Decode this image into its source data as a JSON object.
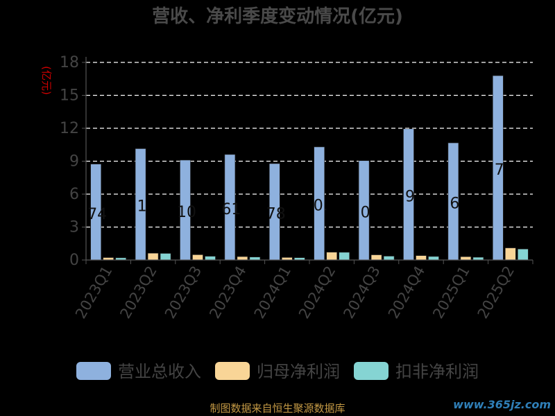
{
  "chart_data": {
    "type": "bar",
    "title": "营收、净利季度变动情况(亿元)",
    "ylabel": "(亿元)",
    "xlabel": "",
    "categories": [
      "2023Q1",
      "2023Q2",
      "2023Q3",
      "2023Q4",
      "2024Q1",
      "2024Q2",
      "2024Q3",
      "2024Q4",
      "2025Q1",
      "2025Q2"
    ],
    "yticks": [
      "0",
      "3",
      "6",
      "9",
      "12",
      "15",
      "18"
    ],
    "ylim": [
      0,
      18
    ],
    "grid": true,
    "legend_position": "bottom",
    "series": [
      {
        "name": "营业总收入",
        "color": "#8eb1de",
        "values": [
          8.74,
          10.14,
          9.1,
          9.61,
          8.78,
          10.3,
          9.05,
          11.95,
          10.67,
          16.79
        ]
      },
      {
        "name": "归母净利润",
        "color": "#f9d597",
        "values": [
          0.22,
          0.62,
          0.48,
          0.31,
          0.23,
          0.71,
          0.47,
          0.4,
          0.3,
          1.1
        ]
      },
      {
        "name": "扣非净利润",
        "color": "#85d4d3",
        "values": [
          0.2,
          0.6,
          0.34,
          0.27,
          0.21,
          0.7,
          0.35,
          0.32,
          0.25,
          1.0
        ]
      }
    ],
    "data_labels": [
      "74",
      "1",
      "10",
      "61",
      "78",
      "0.",
      "0",
      "9",
      "6",
      "7"
    ]
  },
  "footer": "制图数据来自恒生聚源数据库",
  "watermark": "www.365jz.com"
}
